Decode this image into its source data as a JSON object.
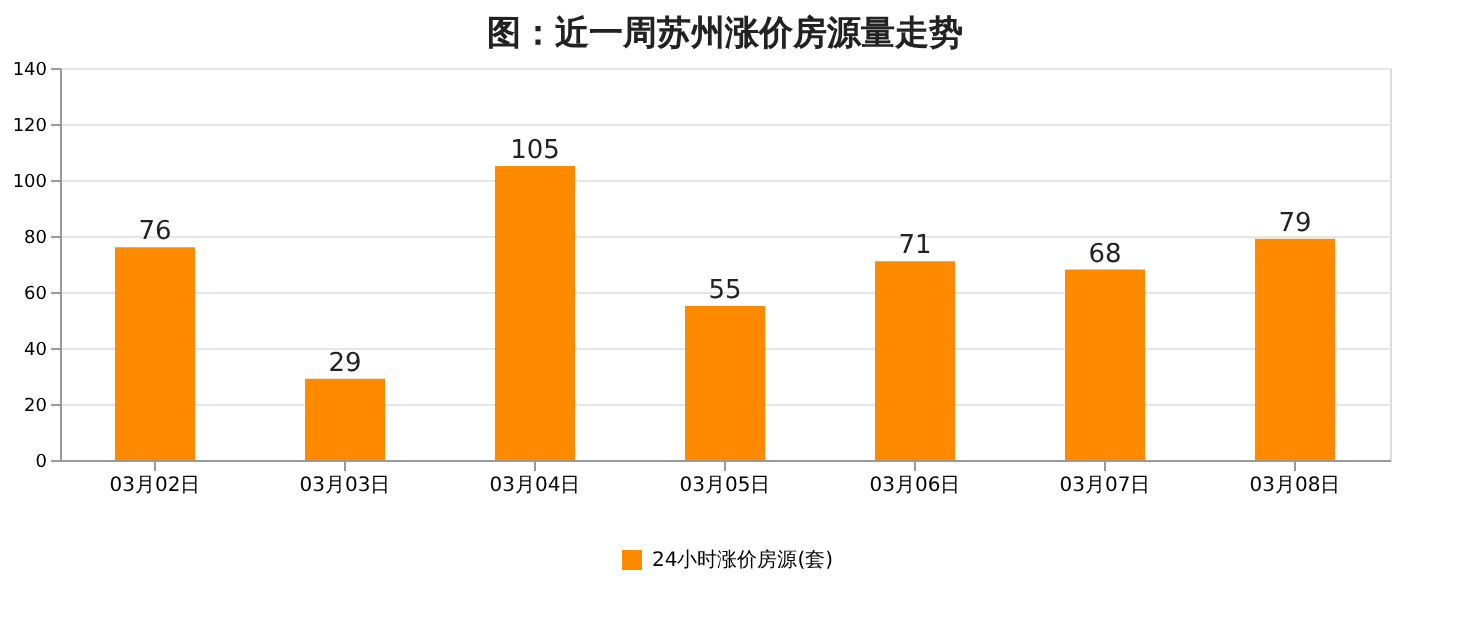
{
  "chart_data": {
    "type": "bar",
    "title": "图：近一周苏州涨价房源量走势",
    "categories": [
      "03月02日",
      "03月03日",
      "03月04日",
      "03月05日",
      "03月06日",
      "03月07日",
      "03月08日"
    ],
    "series": [
      {
        "name": "24小时涨价房源(套)",
        "color": "#ff8a00",
        "values": [
          76,
          29,
          105,
          55,
          71,
          68,
          79
        ]
      }
    ],
    "ylim": [
      0,
      140
    ],
    "yticks": [
      0,
      20,
      40,
      60,
      80,
      100,
      120,
      140
    ],
    "grid": "y",
    "legend": "bottom",
    "data_labels": true
  }
}
